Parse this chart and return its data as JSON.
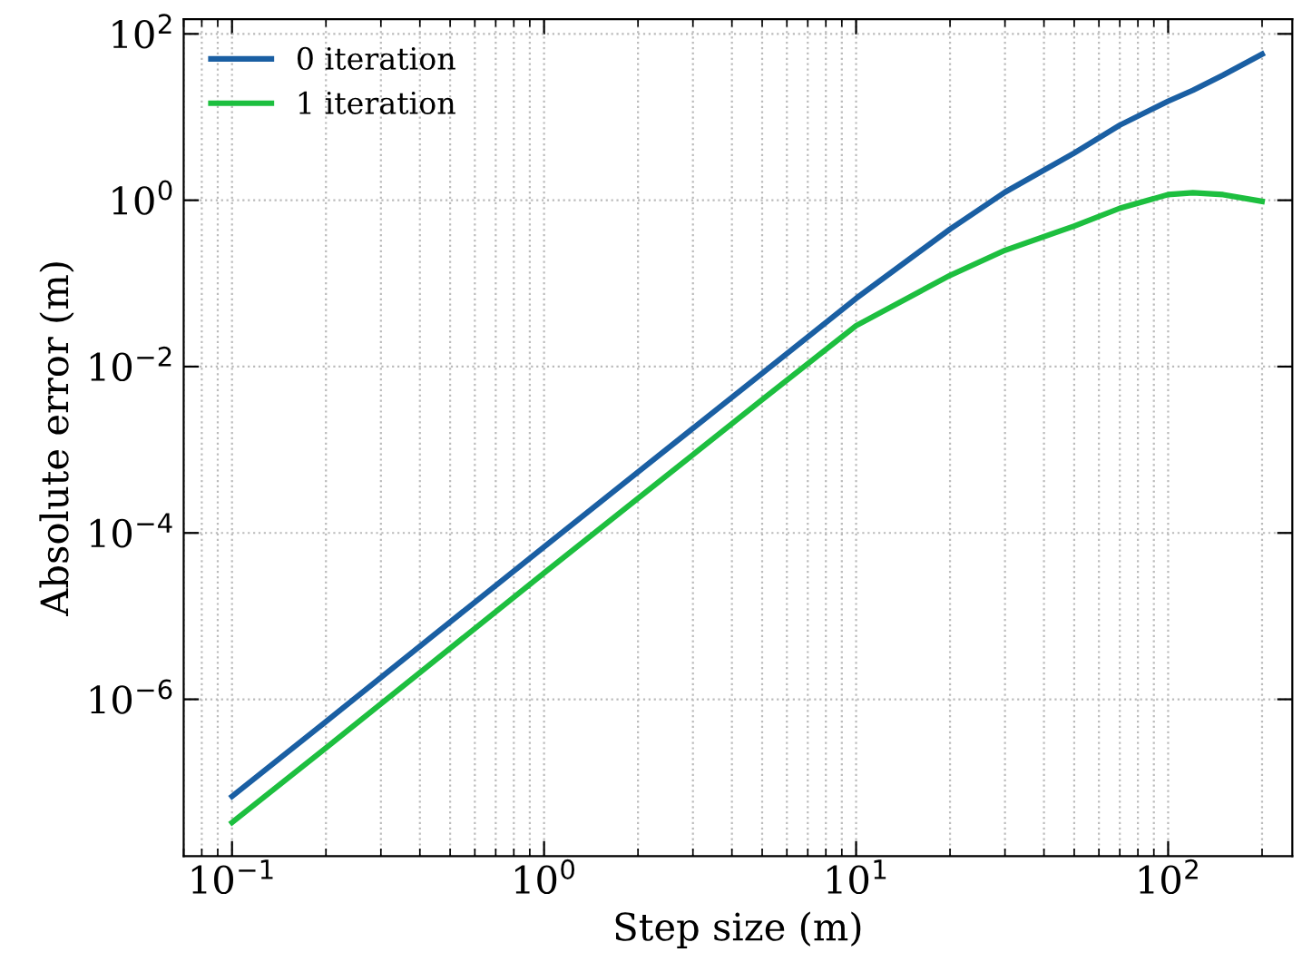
{
  "chart_data": {
    "type": "line",
    "xlabel": "Step size (m)",
    "ylabel": "Absolute error (m)",
    "log": "xy",
    "grid": true,
    "legend": "top left",
    "line_style": "solid",
    "marker": "none",
    "xlim": [
      0.07,
      250
    ],
    "ylim": [
      1.3e-08,
      150
    ],
    "xticks": [
      {
        "value": 0.1,
        "label": "10$^{−1}$"
      },
      {
        "value": 1,
        "label": "10$^{0}$"
      },
      {
        "value": 10,
        "label": "10$^{1}$"
      },
      {
        "value": 100,
        "label": "10$^{2}$"
      }
    ],
    "yticks": [
      {
        "value": 1e-06,
        "label": "10$^{−6}$"
      },
      {
        "value": 0.0001,
        "label": "10$^{−4}$"
      },
      {
        "value": 0.01,
        "label": "10$^{−2}$"
      },
      {
        "value": 1,
        "label": "10$^{0}$"
      },
      {
        "value": 100,
        "label": "10$^{2}$"
      }
    ],
    "x": [
      0.1,
      0.2,
      0.5,
      1,
      2,
      5,
      10,
      20,
      30,
      50,
      70,
      100,
      120,
      150,
      200
    ],
    "series": [
      {
        "name": "0 iteration",
        "color": "#1a5fa3",
        "values": [
          6.8e-08,
          5.4e-07,
          8.5e-06,
          6.8e-05,
          0.00054,
          0.0083,
          0.066,
          0.45,
          1.25,
          3.7,
          8,
          15.5,
          21,
          32,
          57
        ]
      },
      {
        "name": "1 iteration",
        "color": "#1dbf3f",
        "values": [
          3.3e-08,
          2.6e-07,
          4.1e-06,
          3.3e-05,
          0.00026,
          0.004,
          0.031,
          0.125,
          0.25,
          0.49,
          0.8,
          1.17,
          1.23,
          1.17,
          0.97
        ]
      }
    ]
  }
}
